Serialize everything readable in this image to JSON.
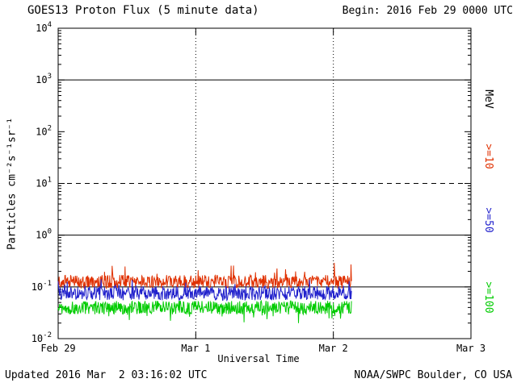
{
  "header": {
    "title": "GOES13 Proton Flux (5 minute data)",
    "begin": "Begin: 2016 Feb 29 0000 UTC"
  },
  "footer": {
    "updated": "Updated 2016 Mar  2 03:16:02 UTC",
    "credit": "NOAA/SWPC Boulder, CO USA"
  },
  "chart_data": {
    "type": "line",
    "title": "GOES13 Proton Flux (5 minute data)",
    "xlabel": "Universal Time",
    "ylabel": "Particles cm⁻²s⁻¹sr⁻¹",
    "x_axis": {
      "start_label": "Begin: 2016 Feb 29 0000 UTC",
      "tick_labels": [
        "Feb 29",
        "Mar 1",
        "Mar 2",
        "Mar 3"
      ],
      "tick_days": [
        0,
        1,
        2,
        3
      ],
      "range_days": 3
    },
    "y_axis": {
      "scale": "log",
      "min": 0.01,
      "max": 10000,
      "tick_exponents": [
        4,
        3,
        2,
        1,
        0,
        -1,
        -2
      ],
      "unit": "MeV"
    },
    "gridlines": {
      "horizontal_solid_at": [
        1000,
        1,
        0.1
      ],
      "horizontal_dashed_at": [
        10
      ],
      "vertical_dotted_at_days": [
        1,
        2
      ]
    },
    "series": [
      {
        "name": ">=10",
        "unit": "MeV",
        "color": "#e03000",
        "log10_center": -0.9,
        "log10_jitter": 0.13,
        "spike_prob": 0.05,
        "spike_amp": 0.3,
        "spike_dir": 1,
        "approx_flux_range": [
          0.08,
          0.3
        ]
      },
      {
        "name": ">=50",
        "unit": "MeV",
        "color": "#2222cc",
        "log10_center": -1.12,
        "log10_jitter": 0.14,
        "spike_prob": 0.05,
        "spike_amp": 0.25,
        "spike_dir": 1,
        "approx_flux_range": [
          0.04,
          0.15
        ]
      },
      {
        "name": ">=100",
        "unit": "MeV",
        "color": "#00cc00",
        "log10_center": -1.4,
        "log10_jitter": 0.13,
        "spike_prob": 0.06,
        "spike_amp": 0.22,
        "spike_dir": -1,
        "approx_flux_range": [
          0.02,
          0.07
        ]
      }
    ],
    "cadence_minutes": 5,
    "data_end_day": 2.136,
    "noise_seed": 20160302
  },
  "right_labels": [
    {
      "label": "MeV",
      "color": "#000000",
      "y_center": 123
    },
    {
      "label": ">=10",
      "color": "#e03000",
      "y_center": 194
    },
    {
      "label": ">=50",
      "color": "#2222cc",
      "y_center": 273
    },
    {
      "label": ">=100",
      "color": "#00cc00",
      "y_center": 369
    }
  ]
}
